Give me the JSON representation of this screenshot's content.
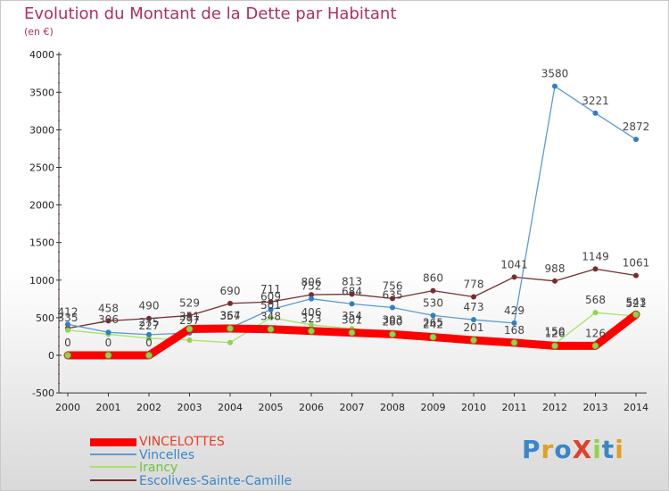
{
  "title": "Evolution du Montant de la Dette par Habitant",
  "unit_label": "(en €)",
  "logo": {
    "text": "ProXiti"
  },
  "chart_data": {
    "type": "line",
    "title": "Evolution du Montant de la Dette par Habitant",
    "ylabel": "(en €)",
    "xlabel": "",
    "ylim": [
      -500,
      4000
    ],
    "yticks": [
      -500,
      0,
      500,
      1000,
      1500,
      2000,
      2500,
      3000,
      3500,
      4000
    ],
    "categories": [
      "2000",
      "2001",
      "2002",
      "2003",
      "2004",
      "2005",
      "2006",
      "2007",
      "2008",
      "2009",
      "2010",
      "2011",
      "2012",
      "2013",
      "2014"
    ],
    "legend_position": "bottom-left",
    "series": [
      {
        "name": "VINCELOTTES",
        "color": "#ff0000",
        "marker": "#8fd44a",
        "values": [
          0,
          0,
          0,
          351,
          357,
          348,
          323,
          301,
          280,
          242,
          201,
          168,
          126,
          126,
          543
        ],
        "labels": [
          "0",
          "0",
          "0",
          "351",
          "357",
          "348",
          "323",
          "301",
          "280",
          "242",
          "201",
          "168",
          "126",
          "126",
          "543"
        ]
      },
      {
        "name": "Vincelles",
        "color": "#5b9bd5",
        "marker": "#2f7fc7",
        "values": [
          412,
          306,
          275,
          297,
          364,
          609,
          752,
          684,
          635,
          530,
          473,
          429,
          3580,
          3221,
          2872
        ],
        "labels": [
          "412",
          "306",
          "275",
          "297",
          "364",
          "609",
          "752",
          "684",
          "635",
          "530",
          "473",
          "429",
          "3580",
          "3221",
          "2872"
        ]
      },
      {
        "name": "Irancy",
        "color": "#a8e26a",
        "marker": "#8fd44a",
        "values": [
          335,
          280,
          227,
          202,
          169,
          501,
          406,
          354,
          303,
          265,
          204,
          158,
          150,
          568,
          521
        ],
        "labels": [
          "335",
          "",
          "227",
          "",
          "",
          "501",
          "406",
          "354",
          "303",
          "265",
          "",
          "",
          "150",
          "568",
          "521"
        ]
      },
      {
        "name": "Escolives-Sainte-Camille",
        "color": "#7a2d2d",
        "marker": "#7a2d2d",
        "values": [
          359,
          458,
          490,
          529,
          690,
          711,
          806,
          813,
          756,
          860,
          778,
          1041,
          988,
          1149,
          1061
        ],
        "labels": [
          "",
          "458",
          "490",
          "529",
          "690",
          "711",
          "806",
          "813",
          "756",
          "860",
          "778",
          "1041",
          "988",
          "1149",
          "1061"
        ]
      }
    ]
  }
}
